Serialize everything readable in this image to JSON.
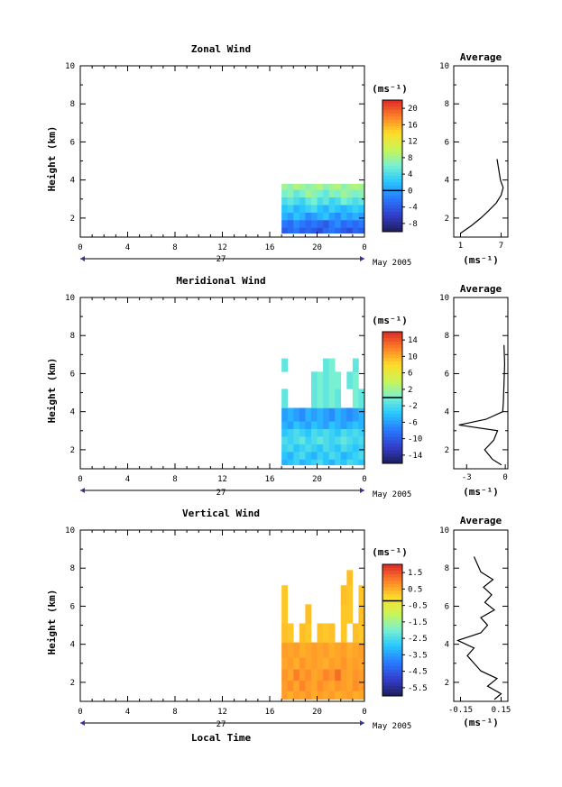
{
  "date_label": "May 2005",
  "day_label": "27",
  "xlabel": "Local Time",
  "panels": [
    {
      "title": "Zonal Wind",
      "ylabel": "Height (km)",
      "unit": "(ms⁻¹)",
      "avg_title": "Average",
      "avg_unit": "(ms⁻¹)",
      "colorbar_ticks": [
        "20",
        "16",
        "12",
        "8",
        "4",
        "0",
        "-4",
        "-8"
      ],
      "avg_xticks": [
        "1",
        "7"
      ]
    },
    {
      "title": "Meridional Wind",
      "ylabel": "Height (km)",
      "unit": "(ms⁻¹)",
      "avg_title": "Average",
      "avg_unit": "(ms⁻¹)",
      "colorbar_ticks": [
        "14",
        "10",
        "6",
        "2",
        "-2",
        "-6",
        "-10",
        "-14"
      ],
      "avg_xticks": [
        "-3",
        "0"
      ]
    },
    {
      "title": "Vertical Wind",
      "ylabel": "Height (km)",
      "unit": "(ms⁻¹)",
      "avg_title": "Average",
      "avg_unit": "(ms⁻¹)",
      "colorbar_ticks": [
        "1.5",
        "0.5",
        "-0.5",
        "-1.5",
        "-2.5",
        "-3.5",
        "-4.5",
        "-5.5"
      ],
      "avg_xticks": [
        "-0.15",
        "0.15"
      ]
    }
  ],
  "chart_data": [
    {
      "type": "heatmap",
      "title": "Zonal Wind",
      "xlabel": "",
      "ylabel": "Height (km)",
      "xticks": [
        "0",
        "4",
        "8",
        "12",
        "16",
        "20",
        "0"
      ],
      "yticks": [
        "2",
        "4",
        "6",
        "8",
        "10"
      ],
      "xlim": [
        0,
        24
      ],
      "ylim": [
        1,
        10
      ],
      "colorbar_range": [
        -10,
        22
      ],
      "colorbar_ticks": [
        20,
        16,
        12,
        8,
        4,
        0,
        -4,
        -8
      ],
      "data_extent": {
        "x": [
          17,
          24
        ],
        "y": [
          1.2,
          3.8
        ]
      },
      "grid_rows": [
        {
          "height": 1.3,
          "values": [
            -4,
            -3,
            -2,
            -4,
            -3,
            -4,
            -5,
            -3,
            -2,
            -3,
            -4,
            -5,
            -3,
            -4
          ]
        },
        {
          "height": 1.7,
          "values": [
            -2,
            -3,
            -1,
            -2,
            -3,
            -2,
            -3,
            -4,
            -2,
            -1,
            -3,
            -2,
            -3,
            -2
          ]
        },
        {
          "height": 2.1,
          "values": [
            1,
            0,
            2,
            1,
            -1,
            0,
            1,
            2,
            0,
            -1,
            1,
            0,
            1,
            0
          ]
        },
        {
          "height": 2.5,
          "values": [
            2,
            3,
            1,
            2,
            3,
            4,
            2,
            1,
            3,
            2,
            1,
            2,
            3,
            2
          ]
        },
        {
          "height": 2.9,
          "values": [
            4,
            5,
            4,
            3,
            5,
            6,
            4,
            5,
            3,
            4,
            6,
            5,
            4,
            5
          ]
        },
        {
          "height": 3.3,
          "values": [
            6,
            7,
            5,
            6,
            8,
            7,
            6,
            5,
            7,
            6,
            8,
            7,
            6,
            7
          ]
        },
        {
          "height": 3.7,
          "values": [
            8,
            7,
            9,
            8,
            7,
            8,
            9,
            7,
            8,
            9,
            7,
            8,
            9,
            8
          ]
        }
      ],
      "average_profile": {
        "xticks": [
          1,
          7
        ],
        "xlim": [
          0,
          8
        ],
        "heights": [
          1.2,
          1.6,
          2.0,
          2.4,
          2.8,
          3.2,
          3.6,
          4.0,
          5.1
        ],
        "values": [
          1.0,
          2.6,
          4.0,
          5.2,
          6.3,
          7.0,
          7.3,
          6.9,
          6.4
        ]
      }
    },
    {
      "type": "heatmap",
      "title": "Meridional Wind",
      "xlabel": "",
      "ylabel": "Height (km)",
      "xticks": [
        "0",
        "4",
        "8",
        "12",
        "16",
        "20",
        "0"
      ],
      "yticks": [
        "2",
        "4",
        "6",
        "8",
        "10"
      ],
      "xlim": [
        0,
        24
      ],
      "ylim": [
        1,
        10
      ],
      "colorbar_range": [
        -16,
        16
      ],
      "colorbar_ticks": [
        14,
        10,
        6,
        2,
        -2,
        -6,
        -10,
        -14
      ],
      "data_extent": {
        "x": [
          17,
          24
        ],
        "y": [
          1.2,
          6.8
        ]
      },
      "grid_rows": [
        {
          "height": 1.3,
          "values": [
            -5,
            -4,
            -3,
            -5,
            -4,
            -3,
            -2,
            -4,
            -5,
            -3,
            -4,
            -2,
            -3,
            -4
          ]
        },
        {
          "height": 1.7,
          "values": [
            -4,
            -5,
            -3,
            -2,
            -4,
            -5,
            -3,
            -4,
            -2,
            -3,
            -5,
            -4,
            -3,
            -2
          ]
        },
        {
          "height": 2.1,
          "values": [
            -3,
            -2,
            -4,
            -3,
            -2,
            -3,
            -4,
            -2,
            -3,
            -4,
            -2,
            -3,
            -4,
            -3
          ]
        },
        {
          "height": 2.5,
          "values": [
            -2,
            -3,
            -2,
            -1,
            -3,
            -2,
            -1,
            -2,
            -3,
            -2,
            -1,
            -2,
            -3,
            -2
          ]
        },
        {
          "height": 2.9,
          "values": [
            -4,
            -3,
            -2,
            -3,
            -4,
            -2,
            -3,
            -2,
            -3,
            -4,
            -2,
            -3,
            -2,
            -3
          ]
        },
        {
          "height": 3.3,
          "values": [
            -5,
            -6,
            -4,
            -5,
            -6,
            -4,
            -5,
            -6,
            -4,
            -5,
            -6,
            -5,
            -4,
            -5
          ]
        },
        {
          "height": 3.7,
          "values": [
            -6,
            -5,
            -6,
            -7,
            -5,
            -6,
            -5,
            -6,
            -7,
            -5,
            -6,
            -7,
            -6,
            -5
          ]
        },
        {
          "height": 4.7,
          "values": [
            -1,
            null,
            null,
            null,
            null,
            -1,
            0,
            -1,
            0,
            -1,
            null,
            null,
            0,
            -1
          ]
        },
        {
          "height": 5.7,
          "values": [
            null,
            null,
            null,
            null,
            null,
            -1,
            0,
            -1,
            0,
            0,
            null,
            -1,
            0,
            null
          ]
        },
        {
          "height": 6.5,
          "values": [
            -1,
            null,
            null,
            null,
            null,
            null,
            null,
            -1,
            0,
            null,
            null,
            null,
            -1,
            null
          ]
        }
      ],
      "average_profile": {
        "xticks": [
          -3,
          0
        ],
        "xlim": [
          -4,
          0.2
        ],
        "heights": [
          1.2,
          1.5,
          2.0,
          2.5,
          3.0,
          3.3,
          3.6,
          4.0,
          4.5,
          5.5,
          6.5,
          7.5
        ],
        "values": [
          -0.3,
          -1.0,
          -1.6,
          -0.9,
          -0.6,
          -3.6,
          -1.5,
          -0.2,
          -0.15,
          -0.1,
          -0.05,
          -0.1
        ]
      }
    },
    {
      "type": "heatmap",
      "title": "Vertical Wind",
      "xlabel": "Local Time",
      "ylabel": "Height (km)",
      "xticks": [
        "0",
        "4",
        "8",
        "12",
        "16",
        "20",
        "0"
      ],
      "yticks": [
        "2",
        "4",
        "6",
        "8",
        "10"
      ],
      "xlim": [
        0,
        24
      ],
      "ylim": [
        1,
        10
      ],
      "colorbar_range": [
        -6.5,
        2.5
      ],
      "colorbar_ticks": [
        1.5,
        0.5,
        -0.5,
        -1.5,
        -2.5,
        -3.5,
        -4.5,
        -5.5
      ],
      "data_extent": {
        "x": [
          17,
          24
        ],
        "y": [
          1.1,
          8.0
        ]
      },
      "grid_rows": [
        {
          "height": 1.3,
          "values": [
            1.0,
            0.8,
            1.0,
            0.9,
            1.1,
            0.8,
            1.0,
            0.9,
            1.0,
            0.8,
            0.9,
            1.0,
            0.8,
            0.9
          ]
        },
        {
          "height": 1.8,
          "values": [
            1.0,
            1.2,
            0.9,
            1.3,
            1.0,
            0.9,
            1.2,
            1.0,
            0.9,
            1.1,
            1.0,
            0.9,
            1.2,
            1.0
          ]
        },
        {
          "height": 2.4,
          "values": [
            1.1,
            0.9,
            1.4,
            1.0,
            1.2,
            0.9,
            1.0,
            1.3,
            1.1,
            1.6,
            1.0,
            0.9,
            1.1,
            1.0
          ]
        },
        {
          "height": 3.0,
          "values": [
            0.9,
            1.0,
            0.8,
            1.1,
            0.9,
            1.0,
            0.9,
            0.8,
            1.0,
            0.9,
            1.1,
            0.9,
            1.0,
            0.9
          ]
        },
        {
          "height": 3.6,
          "values": [
            1.0,
            0.9,
            1.0,
            0.8,
            0.9,
            1.0,
            0.9,
            1.0,
            0.8,
            0.9,
            1.0,
            0.8,
            0.9,
            1.0
          ]
        },
        {
          "height": 4.6,
          "values": [
            0.6,
            0.5,
            null,
            0.6,
            0.5,
            null,
            0.6,
            0.5,
            0.6,
            null,
            0.5,
            null,
            0.6,
            0.5
          ]
        },
        {
          "height": 5.6,
          "values": [
            0.5,
            null,
            null,
            null,
            0.6,
            null,
            null,
            null,
            null,
            null,
            0.5,
            0.5,
            null,
            0.6
          ]
        },
        {
          "height": 6.6,
          "values": [
            0.5,
            null,
            null,
            null,
            null,
            null,
            null,
            null,
            null,
            null,
            0.6,
            0.5,
            null,
            0.5
          ]
        },
        {
          "height": 7.6,
          "values": [
            null,
            null,
            null,
            null,
            null,
            null,
            null,
            null,
            null,
            null,
            null,
            0.6,
            null,
            null
          ]
        }
      ],
      "average_profile": {
        "xticks": [
          -0.15,
          0.15
        ],
        "xlim": [
          -0.2,
          0.2
        ],
        "heights": [
          1.1,
          1.4,
          1.8,
          2.2,
          2.6,
          3.0,
          3.4,
          3.8,
          4.2,
          4.6,
          5.0,
          5.4,
          5.8,
          6.2,
          6.6,
          7.0,
          7.4,
          7.8,
          8.6
        ],
        "values": [
          0.1,
          0.15,
          0.05,
          0.12,
          0.0,
          -0.05,
          -0.1,
          -0.05,
          -0.17,
          0.0,
          0.05,
          0.0,
          0.1,
          0.03,
          0.08,
          0.02,
          0.09,
          0.0,
          -0.05
        ]
      }
    }
  ]
}
